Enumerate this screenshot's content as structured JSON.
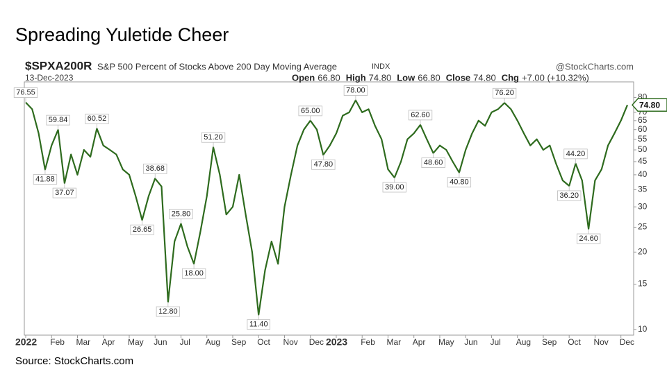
{
  "chart_data": {
    "type": "line",
    "title": "Spreading Yuletide Cheer",
    "symbol": "$SPXA200R",
    "subtitle": "S&P 500 Percent of Stocks Above 200 Day Moving Average",
    "exchange": "INDX",
    "brand": "@StockCharts.com",
    "date": "13-Dec-2023",
    "stats": [
      {
        "label": "Open",
        "value": "66.80"
      },
      {
        "label": "High",
        "value": "74.80"
      },
      {
        "label": "Low",
        "value": "66.80"
      },
      {
        "label": "Close",
        "value": "74.80"
      },
      {
        "label": "Chg",
        "value": "+7.00 (+10.32%)"
      }
    ],
    "source": "Source: StockCharts.com",
    "log_scale": true,
    "grid": false,
    "color": "#2e6b1e",
    "categories": [
      "2022",
      null,
      null,
      null,
      "Feb",
      null,
      null,
      null,
      "Mar",
      null,
      null,
      null,
      "Apr",
      null,
      null,
      null,
      "May",
      null,
      null,
      null,
      "Jun",
      null,
      null,
      null,
      "Jul",
      null,
      null,
      null,
      "Aug",
      null,
      null,
      null,
      "Sep",
      null,
      null,
      null,
      "Oct",
      null,
      null,
      null,
      "Nov",
      null,
      null,
      null,
      "Dec",
      null,
      null,
      null,
      "2023",
      null,
      null,
      null,
      "Feb",
      null,
      null,
      null,
      "Mar",
      null,
      null,
      null,
      "Apr",
      null,
      null,
      null,
      "May",
      null,
      null,
      null,
      "Jun",
      null,
      null,
      null,
      "Jul",
      null,
      null,
      null,
      "Aug",
      null,
      null,
      null,
      "Sep",
      null,
      null,
      null,
      "Oct",
      null,
      null,
      null,
      "Nov",
      null,
      null,
      null,
      "Dec",
      null
    ],
    "values": [
      76.55,
      72,
      58,
      41.88,
      52,
      59.84,
      37.07,
      48,
      40,
      50,
      47,
      60.52,
      52,
      50,
      48,
      42,
      40,
      33,
      26.65,
      33,
      38.68,
      36,
      12.8,
      22,
      25.8,
      21,
      18,
      24,
      33,
      51.2,
      40,
      28,
      30,
      40,
      28,
      20,
      11.4,
      17,
      22,
      18,
      30,
      40,
      52,
      60,
      65,
      60,
      47.8,
      52,
      58,
      68,
      70,
      78,
      70,
      72,
      62,
      55,
      42,
      39,
      45,
      55,
      58,
      62.6,
      55,
      48.6,
      52,
      50,
      45,
      40.8,
      50,
      58,
      65,
      62,
      70,
      72,
      76.2,
      72,
      65,
      58,
      52,
      55,
      50,
      52,
      44,
      38,
      36.2,
      44.2,
      38,
      24.6,
      38,
      42,
      52,
      58,
      65,
      74.8
    ],
    "value_labels": [
      "76.55",
      null,
      null,
      "41.88",
      null,
      "59.84",
      "37.07",
      null,
      null,
      null,
      null,
      "60.52",
      null,
      null,
      null,
      null,
      null,
      null,
      "26.65",
      null,
      "38.68",
      null,
      "12.80",
      null,
      "25.80",
      null,
      "18.00",
      null,
      null,
      "51.20",
      null,
      null,
      null,
      null,
      null,
      null,
      "11.40",
      null,
      null,
      null,
      null,
      null,
      null,
      null,
      "65.00",
      null,
      "47.80",
      null,
      null,
      null,
      null,
      "78.00",
      null,
      null,
      null,
      null,
      null,
      "39.00",
      null,
      null,
      null,
      "62.60",
      null,
      "48.60",
      null,
      null,
      null,
      "40.80",
      null,
      null,
      null,
      null,
      null,
      null,
      "76.20",
      null,
      null,
      null,
      null,
      null,
      null,
      null,
      null,
      null,
      "36.20",
      "44.20",
      null,
      "24.60",
      null,
      null,
      null,
      null,
      null,
      "74.80"
    ],
    "ylim": [
      9.5,
      92
    ],
    "yticks": [
      10,
      15,
      20,
      25,
      30,
      35,
      40,
      45,
      50,
      55,
      60,
      65,
      70,
      80
    ]
  }
}
